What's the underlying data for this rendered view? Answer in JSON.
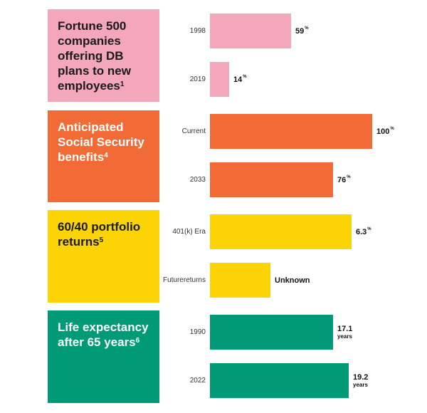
{
  "chart_data": [
    {
      "type": "bar",
      "title": "Fortune 500 companies offering DB plans to new employees",
      "footnote": "1",
      "categories": [
        "1998",
        "2019"
      ],
      "values": [
        59,
        14
      ],
      "value_labels": [
        "59",
        "14"
      ],
      "unit": "%",
      "color": "#f4a6bb",
      "title_color": "#1a1a1a",
      "xlim": [
        0,
        118
      ]
    },
    {
      "type": "bar",
      "title": "Anticipated Social Security benefits",
      "footnote": "4",
      "categories": [
        "Current",
        "2033"
      ],
      "values": [
        100,
        76
      ],
      "value_labels": [
        "100",
        "76"
      ],
      "unit": "%",
      "color": "#f26a35",
      "title_color": "#ffffff",
      "xlim": [
        0,
        100
      ]
    },
    {
      "type": "bar",
      "title": "60/40 portfolio returns",
      "footnote": "5",
      "categories": [
        "401(k) Era",
        "Future returns"
      ],
      "values": [
        6.3,
        null
      ],
      "value_labels": [
        "6.3",
        "Unknown"
      ],
      "unit": "%",
      "color": "#fcd405",
      "title_color": "#1a1a1a",
      "xlim": [
        0,
        7.2
      ]
    },
    {
      "type": "bar",
      "title": "Life expectancy after 65 years",
      "footnote": "6",
      "categories": [
        "1990",
        "2022"
      ],
      "values": [
        17.1,
        19.2
      ],
      "value_labels": [
        "17.1",
        "19.2"
      ],
      "unit": "years",
      "color": "#009b76",
      "title_color": "#ffffff",
      "xlim": [
        0,
        22.5
      ]
    }
  ]
}
